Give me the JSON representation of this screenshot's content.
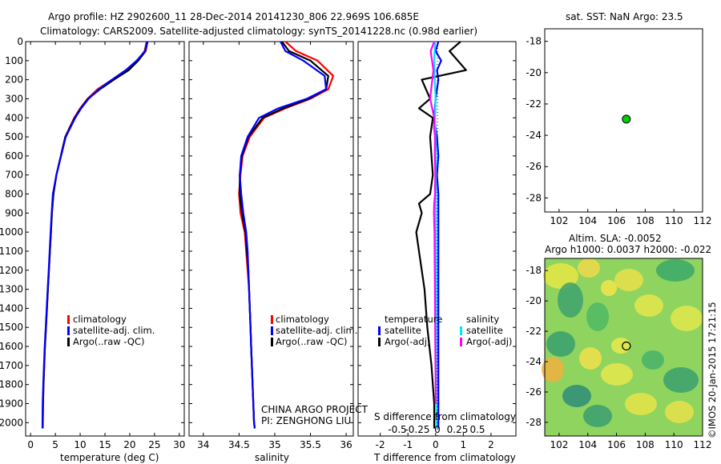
{
  "header": {
    "line1": "Argo profile: HZ 2902600_11 28-Dec-2014 20141230_806 22.969S 106.685E",
    "line2": "Climatology: CARS2009. Satellite-adjusted climatology: synTS_20141228.nc (0.98d earlier)"
  },
  "depth_ticks": [
    "0",
    "100",
    "200",
    "300",
    "400",
    "500",
    "600",
    "700",
    "800",
    "900",
    "1000",
    "1100",
    "1200",
    "1300",
    "1400",
    "1500",
    "1600",
    "1700",
    "1800",
    "1900",
    "2000"
  ],
  "colors": {
    "climatology": "#ff0000",
    "satellite": "#0000ff",
    "argo": "#000000",
    "salinity_satellite": "#00e5ee",
    "salinity_argo": "#ff00ff",
    "position_marker": "#00cc00"
  },
  "temperature_panel": {
    "xlabel": "temperature (deg C)",
    "xticks": [
      "0",
      "5",
      "10",
      "15",
      "20",
      "25",
      "30"
    ],
    "legend": [
      "climatology",
      "satellite-adj. clim.",
      "Argo(..raw -QC)"
    ]
  },
  "salinity_panel": {
    "xlabel": "salinity",
    "xticks": [
      "34",
      "34.5",
      "35",
      "35.5",
      "36"
    ],
    "legend": [
      "climatology",
      "satellite-adj. clim.",
      "Argo(..raw -QC)"
    ],
    "note1": "CHINA ARGO PROJECT",
    "note2": "PI: ZENGHONG LIU"
  },
  "difference_panel": {
    "top_label": "S difference from climatology",
    "bottom_label": "T difference from climatology",
    "s_ticks": [
      "-0.5",
      "-0.25",
      "0",
      "0.25",
      "0.5"
    ],
    "t_ticks": [
      "-2",
      "-1",
      "0",
      "1",
      "2"
    ],
    "legend_temp_title": "temperature",
    "legend_sal_title": "salinity",
    "legend_temp": [
      "satellite",
      "Argo(-adj)"
    ],
    "legend_sal": [
      "satellite",
      "Argo(-adj)"
    ]
  },
  "sst_map": {
    "title": "sat. SST: NaN Argo: 23.5",
    "xticks": [
      "102",
      "104",
      "106",
      "108",
      "110",
      "112"
    ],
    "yticks": [
      "-18",
      "-20",
      "-22",
      "-24",
      "-26",
      "-28"
    ]
  },
  "sla_map": {
    "title1": "Altim. SLA: -0.0052",
    "title2": "Argo h1000: 0.0037 h2000: -0.022",
    "xticks": [
      "102",
      "104",
      "106",
      "108",
      "110",
      "112"
    ],
    "yticks": [
      "-18",
      "-20",
      "-22",
      "-24",
      "-26",
      "-28"
    ]
  },
  "credit": "©IMOS 20-Jan-2015 17:21:15",
  "chart_data": [
    {
      "type": "line",
      "xlabel": "temperature (deg C)",
      "ylabel": "",
      "xlim": [
        -1,
        31
      ],
      "ylim": [
        2070,
        0
      ],
      "series": [
        {
          "name": "climatology",
          "x": [
            23.4,
            23.0,
            21.5,
            19.5,
            16.5,
            13.5,
            11.5,
            10.0,
            8.8,
            7.0,
            5.2,
            4.6,
            4.3,
            4.1,
            3.9,
            3.7,
            3.5,
            3.3,
            3.1,
            2.9,
            2.75,
            2.6,
            2.5,
            2.45
          ],
          "y": [
            0,
            50,
            100,
            150,
            200,
            250,
            300,
            350,
            400,
            500,
            700,
            800,
            900,
            1000,
            1100,
            1200,
            1300,
            1400,
            1500,
            1600,
            1700,
            1800,
            1900,
            2030
          ]
        },
        {
          "name": "satellite-adj. clim.",
          "x": [
            23.6,
            23.2,
            21.7,
            19.8,
            16.8,
            14.0,
            11.6,
            10.1,
            8.9,
            7.0,
            5.2,
            4.6,
            4.3,
            4.1,
            3.9,
            3.7,
            3.5,
            3.3,
            3.1,
            2.9,
            2.75,
            2.6,
            2.5,
            2.45
          ],
          "y": [
            0,
            50,
            100,
            150,
            200,
            250,
            300,
            350,
            400,
            500,
            700,
            800,
            900,
            1000,
            1100,
            1200,
            1300,
            1400,
            1500,
            1600,
            1700,
            1800,
            1900,
            2030
          ]
        },
        {
          "name": "Argo(..raw -QC)",
          "x": [
            23.5,
            23.1,
            21.4,
            19.2,
            16.4,
            13.8,
            11.7,
            10.2,
            9.0,
            7.1,
            5.2,
            4.5,
            4.25,
            4.05,
            3.85,
            3.65,
            3.45,
            3.25,
            3.05,
            2.85,
            2.7,
            2.55,
            2.45,
            2.4
          ],
          "y": [
            0,
            50,
            100,
            150,
            200,
            250,
            300,
            350,
            400,
            500,
            700,
            800,
            900,
            1000,
            1100,
            1200,
            1300,
            1400,
            1500,
            1600,
            1700,
            1800,
            1900,
            2030
          ]
        }
      ]
    },
    {
      "type": "line",
      "xlabel": "salinity",
      "ylabel": "",
      "xlim": [
        33.8,
        36.1
      ],
      "ylim": [
        2070,
        0
      ],
      "series": [
        {
          "name": "climatology",
          "x": [
            35.15,
            35.3,
            35.6,
            35.82,
            35.75,
            35.5,
            35.15,
            34.85,
            34.65,
            34.55,
            34.52,
            34.5,
            34.52,
            34.58,
            34.6,
            34.62,
            34.64,
            34.65,
            34.66,
            34.67,
            34.68,
            34.69,
            34.7,
            34.71,
            34.72
          ],
          "y": [
            0,
            50,
            100,
            180,
            250,
            300,
            350,
            400,
            500,
            600,
            700,
            800,
            900,
            1000,
            1100,
            1200,
            1300,
            1400,
            1500,
            1600,
            1700,
            1800,
            1900,
            2000,
            2030
          ]
        },
        {
          "name": "satellite-adj. clim.",
          "x": [
            35.1,
            35.2,
            35.5,
            35.75,
            35.72,
            35.48,
            35.12,
            34.83,
            34.63,
            34.54,
            34.51,
            34.51,
            34.54,
            34.59,
            34.61,
            34.63,
            34.64,
            34.65,
            34.66,
            34.67,
            34.68,
            34.69,
            34.7,
            34.71,
            34.72
          ],
          "y": [
            0,
            50,
            100,
            180,
            250,
            300,
            350,
            400,
            500,
            600,
            700,
            800,
            900,
            1000,
            1100,
            1200,
            1300,
            1400,
            1500,
            1600,
            1700,
            1800,
            1900,
            2000,
            2030
          ]
        },
        {
          "name": "Argo(..raw -QC)",
          "x": [
            35.08,
            35.15,
            35.4,
            35.7,
            35.72,
            35.45,
            35.05,
            34.78,
            34.62,
            34.53,
            34.51,
            34.53,
            34.56,
            34.6,
            34.62,
            34.63,
            34.64,
            34.65,
            34.66,
            34.67,
            34.68,
            34.69,
            34.7,
            34.71,
            34.72
          ],
          "y": [
            0,
            50,
            100,
            180,
            250,
            300,
            350,
            400,
            500,
            600,
            700,
            800,
            900,
            1000,
            1100,
            1200,
            1300,
            1400,
            1500,
            1600,
            1700,
            1800,
            1900,
            2000,
            2030
          ]
        }
      ]
    },
    {
      "type": "line",
      "xlabel": "T difference from climatology",
      "ylabel": "",
      "xlim": [
        -2.8,
        2.9
      ],
      "ylim": [
        2070,
        0
      ],
      "series": [
        {
          "name": "temperature satellite",
          "x": [
            0.1,
            0.0,
            0.2,
            0.05,
            0.1,
            0.0,
            -0.05,
            0.05,
            0.1,
            0.05,
            0.1,
            0.1,
            0.1,
            0.1,
            0.1,
            0.1,
            0.1,
            0.1,
            0.1,
            0.1
          ],
          "y": [
            0,
            50,
            100,
            150,
            200,
            300,
            400,
            500,
            600,
            700,
            800,
            900,
            1000,
            1200,
            1400,
            1600,
            1800,
            1900,
            2000,
            2030
          ]
        },
        {
          "name": "temperature Argo(-adj)",
          "x": [
            0.9,
            0.5,
            1.1,
            -0.5,
            -0.2,
            -0.6,
            -0.1,
            -0.2,
            -0.1,
            -0.2,
            -0.6,
            -0.5,
            -0.7,
            -0.6,
            -0.4,
            -0.3,
            -0.15,
            -0.1,
            -0.05,
            -0.05
          ],
          "y": [
            0,
            50,
            150,
            200,
            300,
            350,
            400,
            500,
            700,
            800,
            850,
            900,
            1000,
            1100,
            1300,
            1500,
            1700,
            1800,
            1900,
            2030
          ]
        },
        {
          "name": "salinity satellite",
          "x": [
            -0.02,
            -0.05,
            -0.03,
            0.0,
            -0.02,
            0.0,
            0.01,
            0.01,
            0.01,
            0.02,
            0.02,
            0.02,
            0.02,
            0.02,
            0.02,
            0.02
          ],
          "y": [
            0,
            100,
            200,
            300,
            400,
            500,
            700,
            900,
            1000,
            1200,
            1400,
            1600,
            1800,
            1900,
            2000,
            2030
          ]
        },
        {
          "name": "salinity Argo(-adj)",
          "x": [
            -0.05,
            -0.18,
            -0.08,
            -0.2,
            -0.05,
            -0.06,
            -0.02,
            -0.03,
            -0.01,
            -0.02,
            -0.02,
            -0.05,
            -0.06,
            -0.04,
            -0.03,
            -0.02,
            -0.01,
            0.0,
            0.0
          ],
          "y": [
            0,
            50,
            150,
            300,
            400,
            450,
            500,
            600,
            700,
            750,
            800,
            850,
            900,
            1000,
            1200,
            1400,
            1600,
            1800,
            1900
          ]
        }
      ]
    },
    {
      "type": "scatter",
      "title": "sat. SST: NaN Argo: 23.5",
      "xlim": [
        101,
        112
      ],
      "ylim": [
        -28.9,
        -17.2
      ],
      "series": [
        {
          "name": "",
          "x": [
            106.685
          ],
          "y": [
            -22.969
          ]
        }
      ]
    },
    {
      "type": "heatmap",
      "title": "Altim. SLA: -0.0052",
      "xlim": [
        101,
        112
      ],
      "ylim": [
        -28.9,
        -17.2
      ],
      "series": [
        {
          "name": "",
          "x": [
            106.685
          ],
          "y": [
            -22.969
          ]
        }
      ]
    }
  ]
}
